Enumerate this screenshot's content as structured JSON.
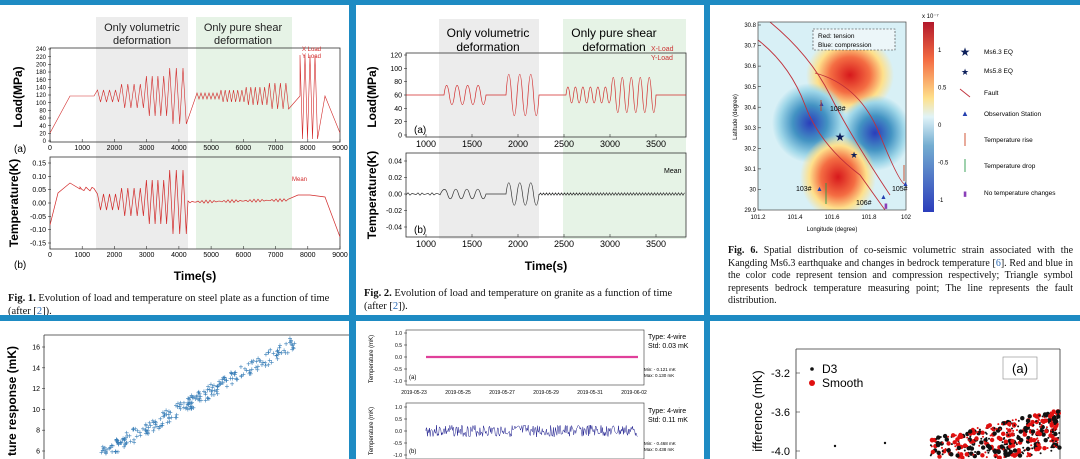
{
  "fig1": {
    "band1": "Only volumetric",
    "band1b": "deformation",
    "band2": "Only pure shear",
    "band2b": "deformation",
    "ylabel_top": "Load(MPa)",
    "ylabel_bottom": "Temperature(K)",
    "xlabel": "Time(s)",
    "tag_a": "(a)",
    "tag_b": "(b)",
    "legend_x": "X Load",
    "legend_y": "Y Load",
    "legend_mean": "Mean",
    "yticks_top": [
      "240",
      "220",
      "200",
      "180",
      "160",
      "140",
      "120",
      "100",
      "80",
      "60",
      "40",
      "20",
      "0"
    ],
    "yticks_bottom": [
      "0.15",
      "0.10",
      "0.05",
      "0.00",
      "-0.05",
      "-0.10",
      "-0.15"
    ],
    "xticks": [
      "0",
      "1000",
      "2000",
      "3000",
      "4000",
      "5000",
      "6000",
      "7000",
      "8000",
      "9000"
    ],
    "cap_bold": "Fig. 1.",
    "cap_text": "Evolution of load and temperature on steel plate as a function of time",
    "cap_line2a": "(after [",
    "cap_ref": "2",
    "cap_line2b": "])."
  },
  "fig2": {
    "band1": "Only volumetric",
    "band1b": "deformation",
    "band2": "Only pure shear",
    "band2b": "deformation",
    "ylabel_top": "Load(MPa)",
    "ylabel_bottom": "Temperature(K)",
    "xlabel": "Time(s)",
    "tag_a": "(a)",
    "tag_b": "(b)",
    "legend_x": "X-Load",
    "legend_y": "Y-Load",
    "legend_mean": "Mean",
    "yticks_top": [
      "120",
      "100",
      "80",
      "60",
      "40",
      "20",
      "0"
    ],
    "yticks_bottom": [
      "0.04",
      "0.02",
      "0.00",
      "-0.02",
      "-0.04"
    ],
    "xticks": [
      "1000",
      "1500",
      "2000",
      "2500",
      "3000",
      "3500"
    ],
    "cap_bold": "Fig. 2.",
    "cap_text": "Evolution of load and temperature on granite as a function of time",
    "cap_line2a": "(after [",
    "cap_ref": "2",
    "cap_line2b": "])."
  },
  "fig6": {
    "legend_box1": "Red: tension",
    "legend_box2": "Blue: compression",
    "scale_exp": "x 10⁻⁷",
    "colorbar_ticks": [
      "1",
      "0.5",
      "0",
      "-0.5",
      "-1"
    ],
    "ylabel": "Latitude (degree)",
    "xlabel": "Longitude (degree)",
    "yticks": [
      "30.8",
      "30.7",
      "30.6",
      "30.5",
      "30.4",
      "30.3",
      "30.2",
      "30.1",
      "30",
      "29.9"
    ],
    "xticks": [
      "101.2",
      "101.4",
      "101.6",
      "101.8",
      "102"
    ],
    "stations": [
      "108#",
      "103#",
      "106#",
      "105#"
    ],
    "legend": [
      "Ms6.3 EQ",
      "Ms5.8 EQ",
      "Fault",
      "Observation Station",
      "Temperature rise",
      "Temperature drop",
      "No temperature changes"
    ],
    "cap_bold": "Fig. 6.",
    "cap_l1": "Spatial distribution of co-seismic volumetric strain associated with the",
    "cap_l2a": "Kangding Ms6.3 earthquake and changes in bedrock temperature [",
    "cap_ref": "6",
    "cap_l2b": "]. Red and",
    "cap_l3": "blue in the color code represent tension and compression respectively; Triangle",
    "cap_l4": "symbol represents bedrock temperature measuring point; The line represents the",
    "cap_l5": "fault distribution."
  },
  "scatter": {
    "ylabel": "ture response (mK)",
    "yticks": [
      "16",
      "14",
      "12",
      "10",
      "8",
      "6"
    ]
  },
  "timeseries": {
    "ylabel_a": "Temperature (mK)",
    "ylabel_b": "Temperature (mK)",
    "type_a": "Type: 4-wire",
    "std_a": "Std: 0.03 mK",
    "minmax_a1": "Min: - 0.121 mK",
    "minmax_a2": "Max: 0.130 mK",
    "type_b": "Type: 4-wire",
    "std_b": "Std: 0.11 mK",
    "minmax_b1": "Min: - 0.468 mK",
    "minmax_b2": "Max: 0.438 mK",
    "tag_a": "(a)",
    "tag_b": "(b)",
    "yticks_a": [
      "1.0",
      "0.5",
      "0.0",
      "-0.5",
      "-1.0"
    ],
    "yticks_b": [
      "1.0",
      "0.5",
      "0.0",
      "-0.5",
      "-1.0"
    ],
    "dates": [
      "2019-05-23",
      "2019-05-25",
      "2019-05-27",
      "2019-05-29",
      "2019-05-31",
      "2019-06-02"
    ]
  },
  "diff": {
    "ylabel": "ifference (mK)",
    "legend_d3": "D3",
    "legend_smooth": "Smooth",
    "tag": "(a)",
    "yticks": [
      "-3.2",
      "-3.6",
      "-4.0"
    ]
  },
  "colors": {
    "background": "#1e8bc3",
    "load_red": "#d22a2a",
    "band_gray": "#ececec",
    "band_green": "#e6f3e6",
    "ts_a": "#e0409a",
    "ts_b": "#1a1a8c",
    "scatter": "#3a7fb8"
  }
}
